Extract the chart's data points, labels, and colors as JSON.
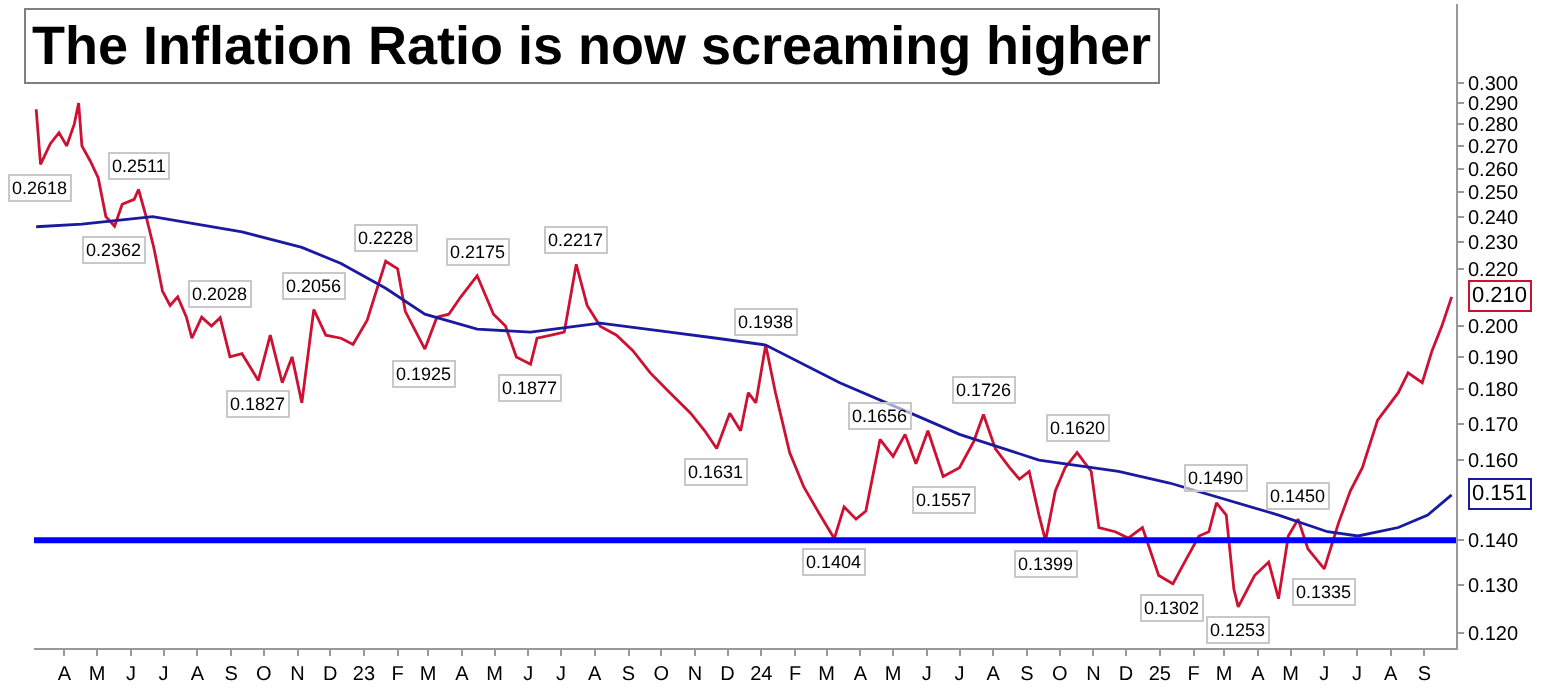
{
  "chart_data": {
    "type": "line",
    "title": "The Inflation Ratio is now screaming higher",
    "log": "y",
    "xlim": [
      "2022-03-04",
      "2025-09-30"
    ],
    "ylim": [
      0.117,
      0.342
    ],
    "yticks": [
      {
        "value": 0.12,
        "label": "0.120"
      },
      {
        "value": 0.13,
        "label": "0.130"
      },
      {
        "value": 0.14,
        "label": "0.140"
      },
      {
        "value": 0.16,
        "label": "0.160"
      },
      {
        "value": 0.17,
        "label": "0.170"
      },
      {
        "value": 0.18,
        "label": "0.180"
      },
      {
        "value": 0.19,
        "label": "0.190"
      },
      {
        "value": 0.2,
        "label": "0.200"
      },
      {
        "value": 0.22,
        "label": "0.220"
      },
      {
        "value": 0.23,
        "label": "0.230"
      },
      {
        "value": 0.24,
        "label": "0.240"
      },
      {
        "value": 0.25,
        "label": "0.250"
      },
      {
        "value": 0.26,
        "label": "0.260"
      },
      {
        "value": 0.27,
        "label": "0.270"
      },
      {
        "value": 0.28,
        "label": "0.280"
      },
      {
        "value": 0.29,
        "label": "0.290"
      },
      {
        "value": 0.3,
        "label": "0.300"
      }
    ],
    "xticks": [
      {
        "value": "2022-04-01",
        "label": "A"
      },
      {
        "value": "2022-05-01",
        "label": "M"
      },
      {
        "value": "2022-06-01",
        "label": "J"
      },
      {
        "value": "2022-07-01",
        "label": "J"
      },
      {
        "value": "2022-08-01",
        "label": "A"
      },
      {
        "value": "2022-09-01",
        "label": "S"
      },
      {
        "value": "2022-10-01",
        "label": "O"
      },
      {
        "value": "2022-11-01",
        "label": "N"
      },
      {
        "value": "2022-12-01",
        "label": "D"
      },
      {
        "value": "2023-01-01",
        "label": "23"
      },
      {
        "value": "2023-02-01",
        "label": "F"
      },
      {
        "value": "2023-03-01",
        "label": "M"
      },
      {
        "value": "2023-04-01",
        "label": "A"
      },
      {
        "value": "2023-05-01",
        "label": "M"
      },
      {
        "value": "2023-06-01",
        "label": "J"
      },
      {
        "value": "2023-07-01",
        "label": "J"
      },
      {
        "value": "2023-08-01",
        "label": "A"
      },
      {
        "value": "2023-09-01",
        "label": "S"
      },
      {
        "value": "2023-10-01",
        "label": "O"
      },
      {
        "value": "2023-11-01",
        "label": "N"
      },
      {
        "value": "2023-12-01",
        "label": "D"
      },
      {
        "value": "2024-01-01",
        "label": "24"
      },
      {
        "value": "2024-02-01",
        "label": "F"
      },
      {
        "value": "2024-03-01",
        "label": "M"
      },
      {
        "value": "2024-04-01",
        "label": "A"
      },
      {
        "value": "2024-05-01",
        "label": "M"
      },
      {
        "value": "2024-06-01",
        "label": "J"
      },
      {
        "value": "2024-07-01",
        "label": "J"
      },
      {
        "value": "2024-08-01",
        "label": "A"
      },
      {
        "value": "2024-09-01",
        "label": "S"
      },
      {
        "value": "2024-10-01",
        "label": "O"
      },
      {
        "value": "2024-11-01",
        "label": "N"
      },
      {
        "value": "2024-12-01",
        "label": "D"
      },
      {
        "value": "2025-01-01",
        "label": "25"
      },
      {
        "value": "2025-02-01",
        "label": "F"
      },
      {
        "value": "2025-03-01",
        "label": "M"
      },
      {
        "value": "2025-04-01",
        "label": "A"
      },
      {
        "value": "2025-05-01",
        "label": "M"
      },
      {
        "value": "2025-06-01",
        "label": "J"
      },
      {
        "value": "2025-07-01",
        "label": "J"
      },
      {
        "value": "2025-08-01",
        "label": "A"
      },
      {
        "value": "2025-09-01",
        "label": "S"
      }
    ],
    "ref_lines": [
      {
        "axis": "y",
        "value": 0.14,
        "color": "#0000ff"
      }
    ],
    "series": [
      {
        "color": "#cc1133",
        "x": [
          "2022-03-06",
          "2022-03-10",
          "2022-03-19",
          "2022-03-27",
          "2022-04-03",
          "2022-04-10",
          "2022-04-14",
          "2022-04-17",
          "2022-04-25",
          "2022-05-02",
          "2022-05-09",
          "2022-05-17",
          "2022-05-24",
          "2022-06-04",
          "2022-06-08",
          "2022-06-15",
          "2022-06-22",
          "2022-06-30",
          "2022-07-07",
          "2022-07-14",
          "2022-07-22",
          "2022-07-27",
          "2022-08-05",
          "2022-08-14",
          "2022-08-22",
          "2022-08-31",
          "2022-09-11",
          "2022-09-26",
          "2022-10-07",
          "2022-10-18",
          "2022-10-27",
          "2022-11-05",
          "2022-11-16",
          "2022-11-27",
          "2022-12-11",
          "2022-12-22",
          "2023-01-04",
          "2023-01-21",
          "2023-02-01",
          "2023-02-08",
          "2023-02-26",
          "2023-03-09",
          "2023-03-20",
          "2023-03-31",
          "2023-04-15",
          "2023-04-30",
          "2023-05-11",
          "2023-05-21",
          "2023-06-03",
          "2023-06-09",
          "2023-06-22",
          "2023-07-04",
          "2023-07-15",
          "2023-07-25",
          "2023-08-06",
          "2023-08-21",
          "2023-09-05",
          "2023-09-21",
          "2023-10-09",
          "2023-10-28",
          "2023-11-10",
          "2023-11-21",
          "2023-12-03",
          "2023-12-13",
          "2023-12-20",
          "2023-12-27",
          "2024-01-05",
          "2024-01-14",
          "2024-01-27",
          "2024-02-09",
          "2024-02-24",
          "2024-03-08",
          "2024-03-17",
          "2024-03-28",
          "2024-04-06",
          "2024-04-19",
          "2024-05-01",
          "2024-05-12",
          "2024-05-22",
          "2024-06-02",
          "2024-06-16",
          "2024-07-01",
          "2024-07-14",
          "2024-07-23",
          "2024-08-03",
          "2024-08-16",
          "2024-08-25",
          "2024-09-03",
          "2024-09-12",
          "2024-09-18",
          "2024-09-27",
          "2024-10-06",
          "2024-10-17",
          "2024-10-30",
          "2024-11-06",
          "2024-11-21",
          "2024-12-03",
          "2024-12-16",
          "2024-12-31",
          "2025-01-13",
          "2025-01-26",
          "2025-02-06",
          "2025-02-15",
          "2025-02-22",
          "2025-03-03",
          "2025-03-10",
          "2025-03-14",
          "2025-03-29",
          "2025-04-11",
          "2025-04-20",
          "2025-04-29",
          "2025-05-08",
          "2025-05-17",
          "2025-06-01",
          "2025-06-14",
          "2025-06-25",
          "2025-07-06",
          "2025-07-20",
          "2025-08-08",
          "2025-08-17",
          "2025-08-30",
          "2025-09-08",
          "2025-09-17",
          "2025-09-26"
        ],
        "values": [
          0.287,
          0.2618,
          0.271,
          0.276,
          0.27,
          0.28,
          0.29,
          0.27,
          0.263,
          0.256,
          0.24,
          0.2362,
          0.245,
          0.247,
          0.2511,
          0.24,
          0.228,
          0.212,
          0.207,
          0.21,
          0.203,
          0.196,
          0.203,
          0.2,
          0.2028,
          0.19,
          0.191,
          0.1827,
          0.197,
          0.182,
          0.19,
          0.176,
          0.2056,
          0.197,
          0.196,
          0.194,
          0.202,
          0.2228,
          0.22,
          0.205,
          0.1925,
          0.203,
          0.204,
          0.21,
          0.2175,
          0.204,
          0.2,
          0.19,
          0.1877,
          0.196,
          0.197,
          0.198,
          0.2217,
          0.207,
          0.2,
          0.197,
          0.192,
          0.185,
          0.179,
          0.173,
          0.168,
          0.1631,
          0.173,
          0.168,
          0.179,
          0.176,
          0.1938,
          0.179,
          0.162,
          0.153,
          0.146,
          0.1404,
          0.148,
          0.145,
          0.147,
          0.1656,
          0.161,
          0.167,
          0.159,
          0.168,
          0.1557,
          0.158,
          0.165,
          0.1726,
          0.163,
          0.158,
          0.155,
          0.157,
          0.146,
          0.1399,
          0.152,
          0.158,
          0.162,
          0.157,
          0.143,
          0.142,
          0.1405,
          0.143,
          0.132,
          0.1302,
          0.136,
          0.141,
          0.142,
          0.149,
          0.146,
          0.129,
          0.1253,
          0.132,
          0.135,
          0.127,
          0.141,
          0.145,
          0.138,
          0.1335,
          0.144,
          0.152,
          0.158,
          0.171,
          0.179,
          0.185,
          0.182,
          0.192,
          0.2,
          0.21
        ]
      },
      {
        "color": "#1a1aa0",
        "x": [
          "2022-03-06",
          "2022-04-17",
          "2022-06-21",
          "2022-09-11",
          "2022-11-05",
          "2022-12-11",
          "2023-01-21",
          "2023-02-26",
          "2023-04-15",
          "2023-06-03",
          "2023-08-06",
          "2023-10-09",
          "2023-11-21",
          "2024-01-05",
          "2024-03-13",
          "2024-06-01",
          "2024-07-01",
          "2024-09-12",
          "2024-11-24",
          "2025-01-10",
          "2025-04-20",
          "2025-06-04",
          "2025-07-02",
          "2025-08-08",
          "2025-09-04",
          "2025-09-26"
        ],
        "values": [
          0.236,
          0.237,
          0.24,
          0.234,
          0.228,
          0.222,
          0.213,
          0.204,
          0.199,
          0.198,
          0.201,
          0.198,
          0.196,
          0.1938,
          0.182,
          0.171,
          0.167,
          0.16,
          0.157,
          0.154,
          0.146,
          0.142,
          0.141,
          0.143,
          0.146,
          0.151
        ]
      }
    ],
    "annotations": [
      {
        "text": "0.2618",
        "x": "2022-03-10",
        "y": 0.2618
      },
      {
        "text": "0.2511",
        "x": "2022-06-08",
        "y": 0.2511
      },
      {
        "text": "0.2362",
        "x": "2022-05-17",
        "y": 0.2362
      },
      {
        "text": "0.2028",
        "x": "2022-08-22",
        "y": 0.2028
      },
      {
        "text": "0.1827",
        "x": "2022-09-26",
        "y": 0.1827
      },
      {
        "text": "0.2056",
        "x": "2022-11-16",
        "y": 0.2056
      },
      {
        "text": "0.2228",
        "x": "2023-01-21",
        "y": 0.2228
      },
      {
        "text": "0.1925",
        "x": "2023-02-26",
        "y": 0.1925
      },
      {
        "text": "0.2175",
        "x": "2023-04-15",
        "y": 0.2175
      },
      {
        "text": "0.1877",
        "x": "2023-06-03",
        "y": 0.1877
      },
      {
        "text": "0.2217",
        "x": "2023-07-15",
        "y": 0.2217
      },
      {
        "text": "0.1631",
        "x": "2023-11-21",
        "y": 0.1631
      },
      {
        "text": "0.1938",
        "x": "2024-01-05",
        "y": 0.1938
      },
      {
        "text": "0.1404",
        "x": "2024-03-08",
        "y": 0.1404
      },
      {
        "text": "0.1656",
        "x": "2024-04-19",
        "y": 0.1656
      },
      {
        "text": "0.1557",
        "x": "2024-06-16",
        "y": 0.1557
      },
      {
        "text": "0.1726",
        "x": "2024-07-23",
        "y": 0.1726
      },
      {
        "text": "0.1399",
        "x": "2024-09-18",
        "y": 0.1399
      },
      {
        "text": "0.1620",
        "x": "2024-10-17",
        "y": 0.162
      },
      {
        "text": "0.1302",
        "x": "2025-01-13",
        "y": 0.1302
      },
      {
        "text": "0.1490",
        "x": "2025-02-22",
        "y": 0.149
      },
      {
        "text": "0.1253",
        "x": "2025-03-14",
        "y": 0.1253
      },
      {
        "text": "0.1450",
        "x": "2025-05-08",
        "y": 0.145
      },
      {
        "text": "0.1335",
        "x": "2025-06-01",
        "y": 0.1335
      },
      {
        "text": "0.210",
        "x": "2025-09-26",
        "y": 0.21
      },
      {
        "text": "0.151",
        "x": "2025-09-26",
        "y": 0.151
      }
    ]
  }
}
